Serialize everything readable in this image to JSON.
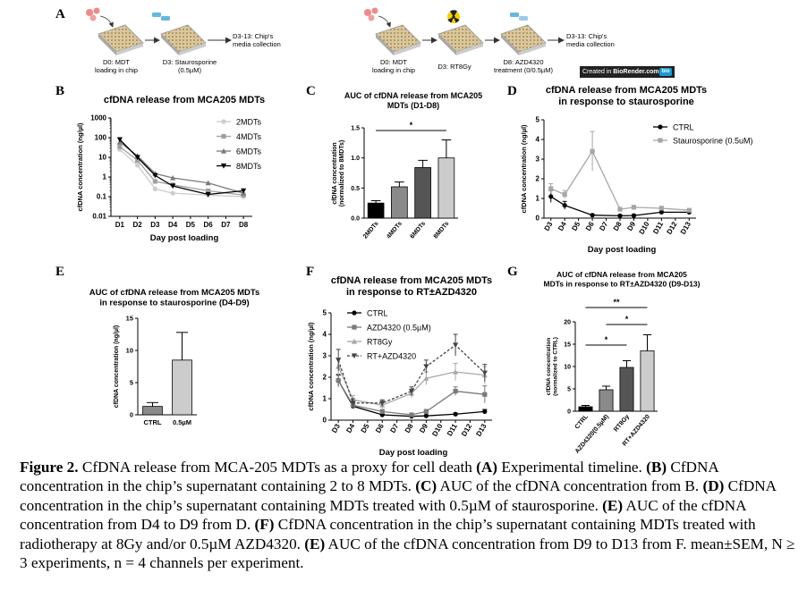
{
  "panel_letters": [
    "A",
    "B",
    "C",
    "D",
    "E",
    "F",
    "G"
  ],
  "timeline": {
    "left": {
      "d0": [
        "D0: MDT",
        "loading in chip"
      ],
      "d3": [
        "D3: Staurosporine",
        "(0.5µM)"
      ],
      "end": [
        "D3-13: Chip's",
        "media collection"
      ]
    },
    "right": {
      "d0": [
        "D0: MDT",
        "loading in chip"
      ],
      "d3": [
        "D3: RT8Gy"
      ],
      "d8": [
        "D8: AZD4320",
        "treatment (0/0.5µM)"
      ],
      "end": [
        "D3-13: Chip's",
        "media collection"
      ],
      "credit_prefix": "Created in ",
      "credit_brand": "BioRender.com",
      "credit_tag": "bio"
    }
  },
  "colors": {
    "black": "#000000",
    "dark_gray": "#555555",
    "mid_gray": "#8a8a8a",
    "light_gray": "#bdbdbd",
    "lighter_gray": "#cccccc",
    "red_dish": "#f08a8a",
    "blue_tube": "#66b7e0"
  },
  "chart_data": [
    {
      "id": "B",
      "type": "line",
      "title": "cfDNA release from MCA205 MDTs",
      "xlabel": "Day post loading",
      "ylabel": "cfDNA concentration (ng/µl)",
      "yscale": "log",
      "ylim": [
        0.01,
        1000
      ],
      "yticks": [
        "0.01",
        "0.1",
        "1",
        "10",
        "100",
        "1000"
      ],
      "categories": [
        "D1",
        "D2",
        "D3",
        "D4",
        "D5",
        "D6",
        "D7",
        "D8"
      ],
      "series": [
        {
          "name": "2MDTs",
          "x": [
            "D1",
            "D2",
            "D3",
            "D4",
            "D6",
            "D8"
          ],
          "values": [
            25,
            4,
            0.25,
            0.15,
            0.12,
            0.1
          ],
          "color": "#cccccc",
          "marker": "circle"
        },
        {
          "name": "4MDTs",
          "x": [
            "D1",
            "D2",
            "D3",
            "D4",
            "D6",
            "D8"
          ],
          "values": [
            35,
            7,
            0.6,
            0.4,
            0.2,
            0.12
          ],
          "color": "#a0a0a0",
          "marker": "square"
        },
        {
          "name": "6MDTs",
          "x": [
            "D1",
            "D2",
            "D3",
            "D4",
            "D6",
            "D8"
          ],
          "values": [
            60,
            12,
            1.5,
            0.9,
            0.5,
            0.15
          ],
          "color": "#7a7a7a",
          "marker": "triangle"
        },
        {
          "name": "8MDTs",
          "x": [
            "D1",
            "D2",
            "D3",
            "D4",
            "D6",
            "D8"
          ],
          "values": [
            80,
            10,
            1.2,
            0.35,
            0.13,
            0.2
          ],
          "color": "#000000",
          "marker": "triangle-down"
        }
      ],
      "legend": "right"
    },
    {
      "id": "C",
      "type": "bar",
      "title": "AUC of cfDNA release from MCA205 MDTs (D1-D8)",
      "title_lines": [
        "AUC of cfDNA release from MCA205",
        "MDTs (D1-D8)"
      ],
      "ylabel_lines": [
        "cfDNA concentration",
        "(normalized to 8MDTs)"
      ],
      "ylim": [
        0,
        1.5
      ],
      "yticks": [
        "0.0",
        "0.5",
        "1.0",
        "1.5"
      ],
      "categories": [
        "2MDTs",
        "4MDTs",
        "6MDTs",
        "8MDTs"
      ],
      "values": [
        0.25,
        0.52,
        0.84,
        1.0
      ],
      "errors": [
        0.04,
        0.08,
        0.12,
        0.3
      ],
      "colors": [
        "#000000",
        "#8a8a8a",
        "#555555",
        "#cccccc"
      ],
      "significance": [
        {
          "from": "2MDTs",
          "to": "8MDTs",
          "label": "*"
        }
      ]
    },
    {
      "id": "D",
      "type": "line",
      "title_lines": [
        "cfDNA release from MCA205 MDTs",
        "in response to staurosporine"
      ],
      "xlabel": "Day post loading",
      "ylabel": "cfDNA concentration (ng/µl)",
      "ylim": [
        0,
        5
      ],
      "yticks": [
        "0",
        "1",
        "2",
        "3",
        "4",
        "5"
      ],
      "categories": [
        "D3",
        "D4",
        "D5",
        "D6",
        "D7",
        "D8",
        "D9",
        "D10",
        "D11",
        "D12",
        "D13"
      ],
      "series": [
        {
          "name": "CTRL",
          "x": [
            "D3",
            "D4",
            "D6",
            "D8",
            "D9",
            "D11",
            "D13"
          ],
          "values": [
            1.1,
            0.65,
            0.15,
            0.12,
            0.13,
            0.3,
            0.3
          ],
          "errors": [
            0.3,
            0.2,
            0.05,
            0.05,
            0.05,
            0.1,
            0.1
          ],
          "color": "#000000",
          "marker": "circle"
        },
        {
          "name": "Staurosporine (0.5uM)",
          "x": [
            "D3",
            "D4",
            "D6",
            "D8",
            "D9",
            "D11",
            "D13"
          ],
          "values": [
            1.5,
            1.2,
            3.4,
            0.45,
            0.55,
            0.5,
            0.4
          ],
          "errors": [
            0.25,
            0.2,
            1.0,
            0.1,
            0.1,
            0.1,
            0.08
          ],
          "color": "#a6a6a6",
          "marker": "square"
        }
      ],
      "legend": "top-right"
    },
    {
      "id": "E",
      "type": "bar",
      "title_lines": [
        "AUC of cfDNA release from MCA205 MDTs",
        "in response to staurosporine (D4-D9)"
      ],
      "ylabel": "cfDNA concentration (ng/µl)",
      "ylim": [
        0,
        15
      ],
      "yticks": [
        "0",
        "5",
        "10",
        "15"
      ],
      "categories": [
        "CTRL",
        "0.5µM"
      ],
      "values": [
        1.3,
        8.5
      ],
      "errors": [
        0.6,
        4.3
      ],
      "colors": [
        "#8a8a8a",
        "#cccccc"
      ]
    },
    {
      "id": "F",
      "type": "line",
      "title_lines": [
        "cfDNA release from MCA205 MDTs",
        "in response to RT±AZD4320"
      ],
      "xlabel": "Day post loading",
      "ylabel": "cfDNA concentration (ng/µl)",
      "ylim": [
        0,
        5
      ],
      "yticks": [
        "0",
        "1",
        "2",
        "3",
        "4",
        "5"
      ],
      "categories": [
        "D3",
        "D4",
        "D5",
        "D6",
        "D7",
        "D8",
        "D9",
        "D10",
        "D11",
        "D12",
        "D13"
      ],
      "series": [
        {
          "name": "CTRL",
          "x": [
            "D3",
            "D4",
            "D6",
            "D8",
            "D9",
            "D11",
            "D13"
          ],
          "values": [
            1.85,
            0.65,
            0.25,
            0.18,
            0.2,
            0.28,
            0.4
          ],
          "errors": [
            0.25,
            0.1,
            0.05,
            0.05,
            0.05,
            0.05,
            0.1
          ],
          "color": "#000000",
          "marker": "circle",
          "dash": false
        },
        {
          "name": "AZD4320 (0.5µM)",
          "x": [
            "D3",
            "D4",
            "D6",
            "D8",
            "D9",
            "D11",
            "D13"
          ],
          "values": [
            1.85,
            0.7,
            0.4,
            0.25,
            0.4,
            1.35,
            1.2
          ],
          "errors": [
            0.3,
            0.15,
            0.1,
            0.08,
            0.1,
            0.2,
            0.4
          ],
          "color": "#7a7a7a",
          "marker": "square",
          "dash": false
        },
        {
          "name": "RT8Gy",
          "x": [
            "D3",
            "D4",
            "D6",
            "D8",
            "D9",
            "D11",
            "D13"
          ],
          "values": [
            2.5,
            0.95,
            0.7,
            1.25,
            1.95,
            2.25,
            2.1
          ],
          "errors": [
            0.4,
            0.2,
            0.15,
            0.2,
            0.3,
            0.4,
            0.4
          ],
          "color": "#a8a8a8",
          "marker": "triangle",
          "dash": false
        },
        {
          "name": "RT+AZD4320",
          "x": [
            "D3",
            "D4",
            "D6",
            "D8",
            "D9",
            "D11",
            "D13"
          ],
          "values": [
            2.8,
            0.8,
            0.8,
            1.35,
            2.5,
            3.5,
            2.2
          ],
          "errors": [
            0.5,
            0.2,
            0.15,
            0.2,
            0.3,
            0.5,
            0.4
          ],
          "color": "#444444",
          "marker": "triangle-down",
          "dash": true
        }
      ],
      "legend": "top-right"
    },
    {
      "id": "G",
      "type": "bar",
      "title_lines": [
        "AUC of cfDNA release from MCA205",
        "MDTs in response to RT±AZD4320 (D9-D13)"
      ],
      "ylabel_lines": [
        "cfDNA concentration",
        "(normalized to CTRL)"
      ],
      "ylim": [
        0,
        20
      ],
      "yticks": [
        "0",
        "5",
        "10",
        "15",
        "20"
      ],
      "categories": [
        "CTRL",
        "AZD4320(0.5µM)",
        "RT8Gy",
        "RT+AZD4320"
      ],
      "values": [
        1.0,
        4.8,
        9.8,
        13.5
      ],
      "errors": [
        0.3,
        0.8,
        1.5,
        3.6
      ],
      "colors": [
        "#000000",
        "#8a8a8a",
        "#555555",
        "#cccccc"
      ],
      "significance": [
        {
          "from": "CTRL",
          "to": "RT+AZD4320",
          "label": "**"
        },
        {
          "from": "AZD4320(0.5µM)",
          "to": "RT+AZD4320",
          "label": "*"
        },
        {
          "from": "CTRL",
          "to": "RT8Gy",
          "label": "*"
        }
      ]
    }
  ],
  "caption": [
    {
      "b": "Figure 2.",
      "t": " CfDNA release from MCA-205 MDTs as a proxy for cell death "
    },
    {
      "b": "(A)",
      "t": " Experimental timeline. "
    },
    {
      "b": "(B)",
      "t": " CfDNA concentration in the chip’s supernatant containing 2 to 8 MDTs. "
    },
    {
      "b": "(C)",
      "t": " AUC of the cfDNA concentration from B. "
    },
    {
      "b": "(D)",
      "t": " CfDNA concentration in the chip’s supernatant containing MDTs treated with 0.5µM of staurosporine. "
    },
    {
      "b": "(E)",
      "t": " AUC of the cfDNA concentration from D4 to D9 from D. "
    },
    {
      "b": "(F)",
      "t": " CfDNA concentration in the chip’s supernatant containing MDTs treated with radiotherapy at 8Gy and/or 0.5µM AZD4320. "
    },
    {
      "b": "(E)",
      "t": " AUC of the cfDNA concentration from D9 to D13 from F. mean±SEM, N ≥ 3 experiments, n = 4 channels per experiment."
    }
  ]
}
